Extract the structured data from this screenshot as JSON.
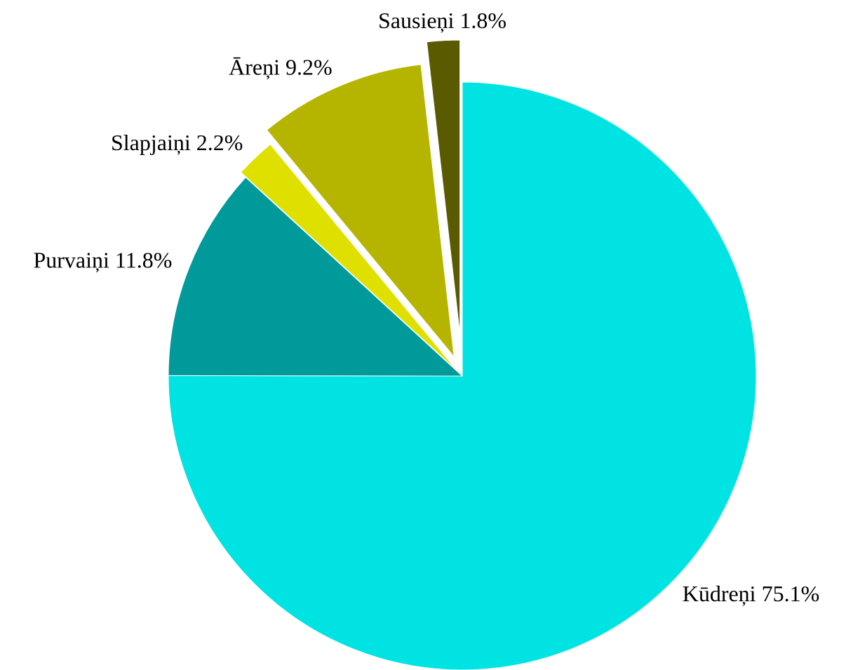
{
  "chart_data": {
    "type": "pie",
    "categories": [
      "Kūdreņi",
      "Purvaiņi",
      "Slapjaiņi",
      "Āreņi",
      "Sausieņi"
    ],
    "values": [
      75.1,
      11.8,
      2.2,
      9.2,
      1.8
    ],
    "value_labels": [
      "75.1%",
      "11.8%",
      "2.2%",
      "9.2%",
      "1.8%"
    ],
    "colors": [
      "#00e3e3",
      "#009a9a",
      "#e0e000",
      "#b5b500",
      "#5a5a00"
    ]
  }
}
